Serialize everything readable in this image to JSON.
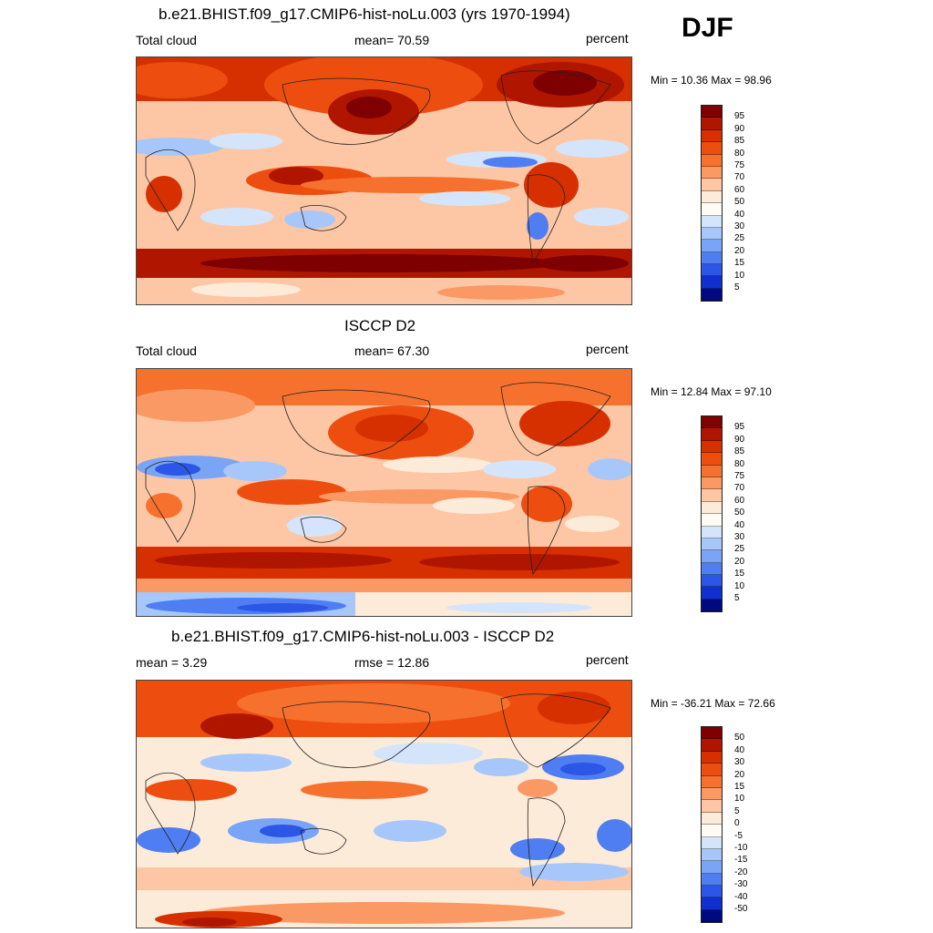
{
  "season": "DJF",
  "units": "percent",
  "panels": [
    {
      "title": "b.e21.BHIST.f09_g17.CMIP6-hist-noLu.003 (yrs 1970-1994)",
      "left_label": "Total cloud",
      "center_label": "mean=  70.59",
      "right_label": "percent",
      "minmax": "Min =  10.36 Max =  98.96",
      "levels": [
        "95",
        "90",
        "85",
        "80",
        "75",
        "70",
        "60",
        "50",
        "40",
        "30",
        "25",
        "20",
        "15",
        "10",
        "5"
      ]
    },
    {
      "title": "ISCCP D2",
      "left_label": "Total cloud",
      "center_label": "mean=  67.30",
      "right_label": "percent",
      "minmax": "Min =  12.84 Max =  97.10",
      "levels": [
        "95",
        "90",
        "85",
        "80",
        "75",
        "70",
        "60",
        "50",
        "40",
        "30",
        "25",
        "20",
        "15",
        "10",
        "5"
      ]
    },
    {
      "title": "b.e21.BHIST.f09_g17.CMIP6-hist-noLu.003 - ISCCP D2",
      "left_label": "mean =   3.29",
      "center_label": "rmse =  12.86",
      "right_label": "percent",
      "minmax": "Min = -36.21 Max =  72.66",
      "levels": [
        "50",
        "40",
        "30",
        "20",
        "15",
        "10",
        "5",
        "0",
        "-5",
        "-10",
        "-15",
        "-20",
        "-30",
        "-40",
        "-50"
      ]
    }
  ],
  "colors": {
    "palette_top_to_bottom": [
      "#7f0000",
      "#b01500",
      "#d63000",
      "#ed4e10",
      "#f7712e",
      "#fb9965",
      "#fdc7a5",
      "#fdebd9",
      "#ffffff",
      "#d4e5fb",
      "#a7c7fb",
      "#7aa5f7",
      "#4f7ef2",
      "#2c56e6",
      "#0f2fcf",
      "#0018a8",
      "#000a80"
    ],
    "panel1_palette": [
      "#7f0000",
      "#b01500",
      "#d63000",
      "#ed4e10",
      "#f7712e",
      "#fb9965",
      "#fdc7a5",
      "#fdebd9",
      "#fffdf3",
      "#d4e5fb",
      "#a7c7fb",
      "#7aa5f7",
      "#4f7ef2",
      "#2c56e6",
      "#0f2fcf",
      "#000a80"
    ],
    "panel3_palette": [
      "#7f0000",
      "#b01500",
      "#d63000",
      "#ed4e10",
      "#f7712e",
      "#fb9965",
      "#fdc7a5",
      "#fdebd9",
      "#fffdf3",
      "#d4e5fb",
      "#a7c7fb",
      "#7aa5f7",
      "#4f7ef2",
      "#2c56e6",
      "#0f2fcf",
      "#000a80"
    ]
  }
}
